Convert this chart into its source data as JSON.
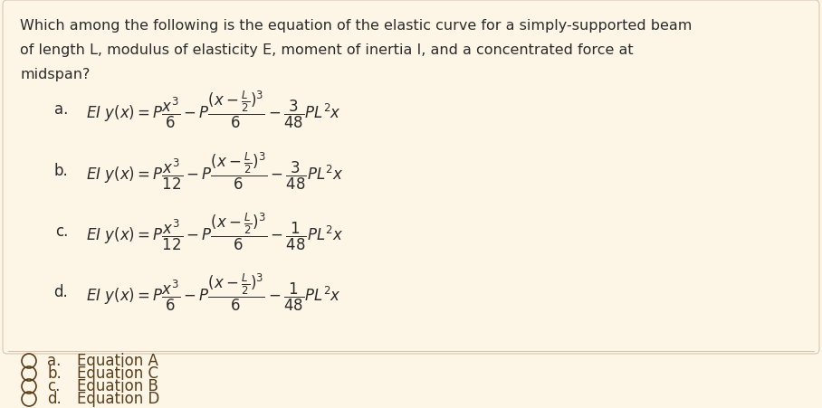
{
  "background_color": "#fdf5e6",
  "question_lines": [
    "Which among the following is the equation of the elastic curve for a simply-supported beam",
    "of length L, modulus of elasticity E, moment of inertia I, and a concentrated force at",
    "midspan?"
  ],
  "eq_labels": [
    "a.",
    "b.",
    "c.",
    "d."
  ],
  "eq_latex": [
    "$EI\\ y(x) = P\\dfrac{x^3}{6} - P\\dfrac{(x-\\frac{L}{2})^3}{6} - \\dfrac{3}{48}PL^2x$",
    "$EI\\ y(x) = P\\dfrac{x^3}{12} - P\\dfrac{(x-\\frac{L}{2})^3}{6} - \\dfrac{3}{48}PL^2x$",
    "$EI\\ y(x) = P\\dfrac{x^3}{12} - P\\dfrac{(x-\\frac{L}{2})^3}{6} - \\dfrac{1}{48}PL^2x$",
    "$EI\\ y(x) = P\\dfrac{x^3}{6} - P\\dfrac{(x-\\frac{L}{2})^3}{6} - \\dfrac{1}{48}PL^2x$"
  ],
  "choice_labels": [
    "a.",
    "b.",
    "c.",
    "d."
  ],
  "choice_texts": [
    "Equation A",
    "Equation C",
    "Equation B",
    "Equation D"
  ],
  "text_color": "#2b2b2b",
  "choice_color": "#5a3e1b",
  "bg_color": "#fdf5e6",
  "box_edge_color": "#d8c8b0",
  "question_fontsize": 11.5,
  "eq_label_fontsize": 12,
  "eq_fontsize": 12,
  "choice_fontsize": 12
}
